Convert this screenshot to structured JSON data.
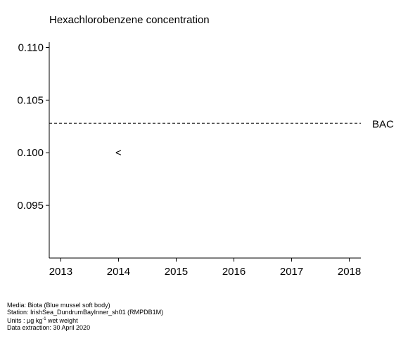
{
  "chart_data": {
    "type": "scatter",
    "title": "Hexachlorobenzene concentration",
    "xlabel": "",
    "ylabel": "",
    "xlim": [
      2012.8,
      2018.2
    ],
    "ylim": [
      0.09,
      0.1105
    ],
    "x_ticks": [
      "2013",
      "2014",
      "2015",
      "2016",
      "2017",
      "2018"
    ],
    "y_ticks": [
      "0.095",
      "0.100",
      "0.105",
      "0.110"
    ],
    "series": [
      {
        "points": [
          {
            "x": 2014,
            "y": 0.1,
            "marker": "<"
          }
        ]
      }
    ],
    "reference_lines": [
      {
        "label": "BAC",
        "y": 0.1028,
        "style": "dashed"
      }
    ],
    "grid": false
  },
  "footer": {
    "media": "Media: Biota (Blue mussel soft body)",
    "station": "Station: IrishSea_DundrumBayInner_sh01 (RMPDB1M)",
    "units_prefix": "Units : µg kg",
    "units_exp": "-1",
    "units_suffix": " wet weight",
    "extraction": "Data extraction: 30 April 2020"
  }
}
